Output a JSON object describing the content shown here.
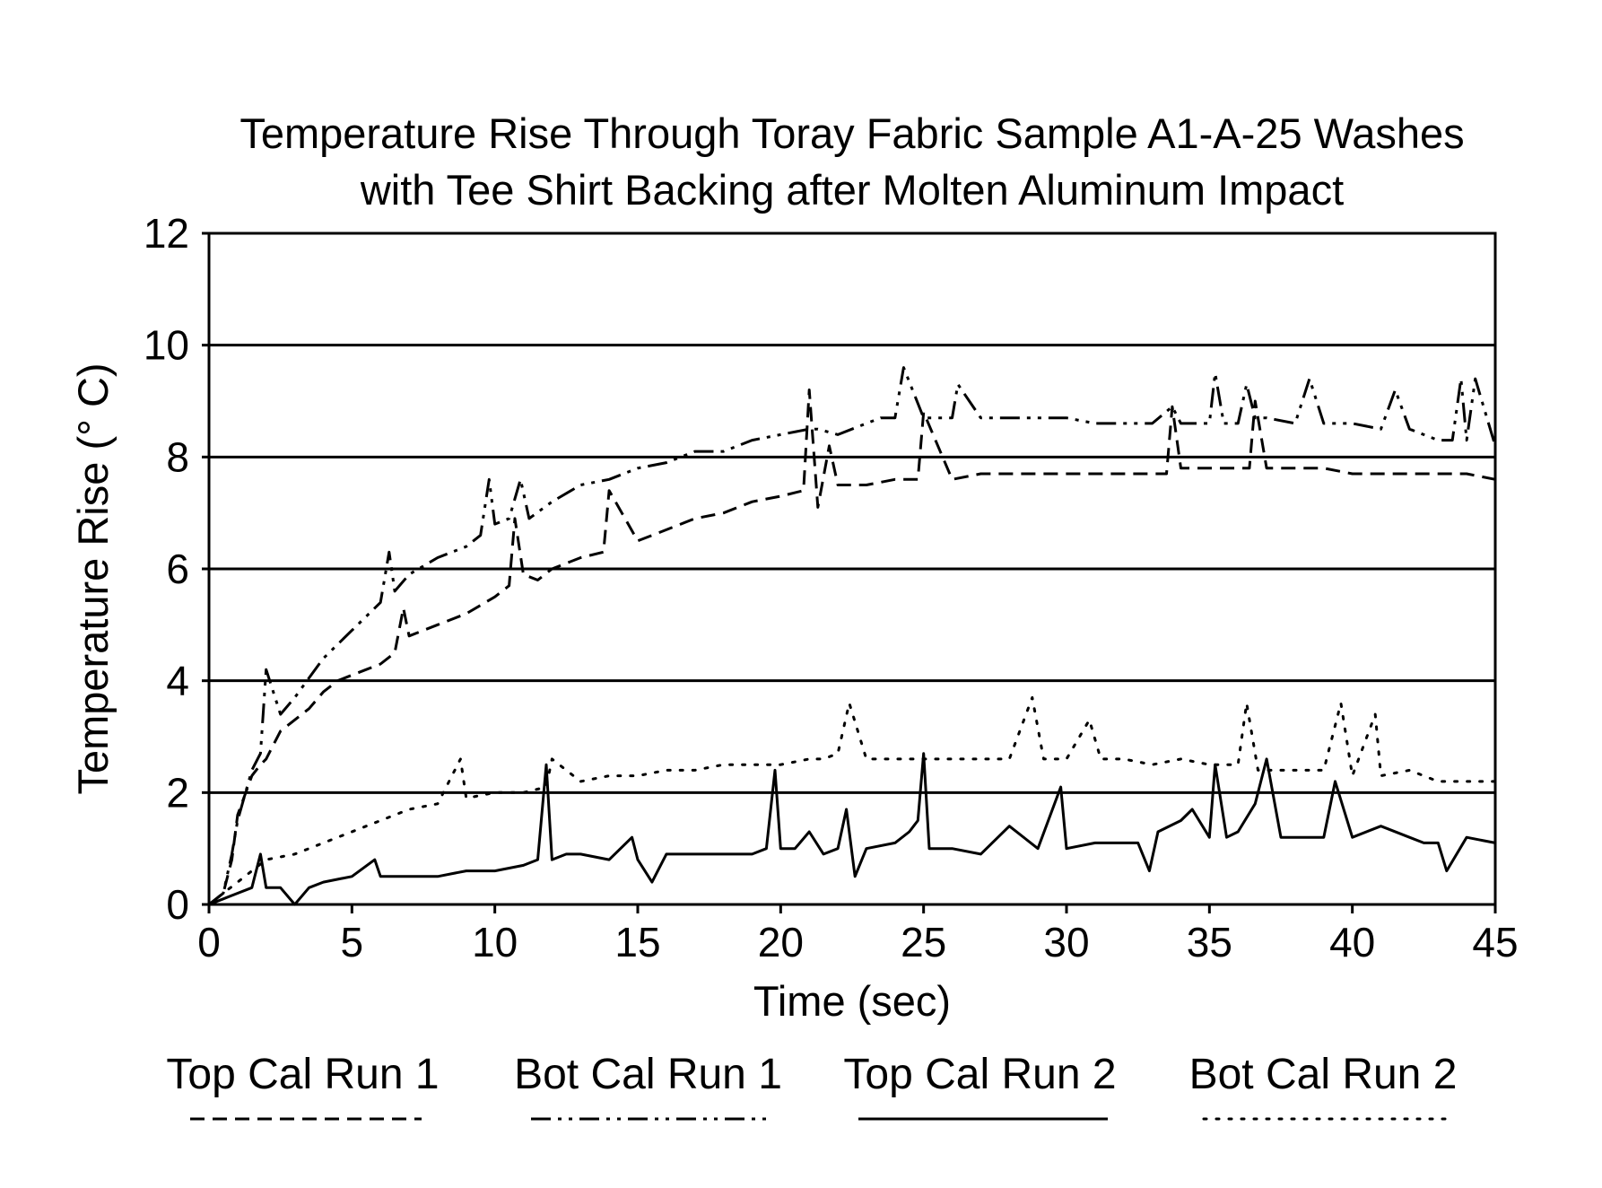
{
  "chart_data": {
    "type": "line",
    "title_lines": [
      "Temperature Rise Through Toray Fabric Sample A1-A-25 Washes",
      "with Tee Shirt Backing after Molten Aluminum Impact"
    ],
    "xlabel": "Time (sec)",
    "ylabel": "Temperature Rise (° C)",
    "xlim": [
      0,
      45
    ],
    "ylim": [
      0,
      12
    ],
    "x_ticks": [
      "0",
      "5",
      "10",
      "15",
      "20",
      "25",
      "30",
      "35",
      "40",
      "45"
    ],
    "y_ticks": [
      "0",
      "2",
      "4",
      "6",
      "8",
      "10",
      "12"
    ],
    "grid": "horizontal",
    "legend_position": "bottom",
    "series": [
      {
        "name": "Top Cal Run 1",
        "line_style": "dashed",
        "color": "#000000",
        "x": [
          0,
          0.5,
          0.8,
          1,
          1.5,
          1.8,
          2,
          2.5,
          3,
          3.5,
          4,
          4.5,
          5,
          5.5,
          6,
          6.5,
          6.8,
          7,
          8,
          9,
          10,
          10.5,
          10.7,
          11,
          11.5,
          12,
          13,
          13.8,
          14,
          15,
          16,
          17,
          18,
          19,
          20,
          20.8,
          21,
          21.3,
          21.7,
          22,
          23,
          24,
          24.8,
          25,
          26,
          27,
          28,
          29,
          30,
          31,
          32,
          33,
          33.5,
          33.7,
          34,
          35,
          36,
          36.4,
          36.6,
          37,
          38,
          39,
          40,
          41,
          42,
          43,
          44,
          45
        ],
        "y": [
          0,
          0.2,
          0.8,
          1.6,
          2.3,
          2.5,
          2.6,
          3.1,
          3.3,
          3.5,
          3.8,
          4.0,
          4.1,
          4.2,
          4.3,
          4.5,
          5.3,
          4.8,
          5.0,
          5.2,
          5.5,
          5.7,
          6.9,
          5.9,
          5.8,
          6.0,
          6.2,
          6.3,
          7.4,
          6.5,
          6.7,
          6.9,
          7.0,
          7.2,
          7.3,
          7.4,
          9.2,
          7.1,
          8.2,
          7.5,
          7.5,
          7.6,
          7.6,
          8.8,
          7.6,
          7.7,
          7.7,
          7.7,
          7.7,
          7.7,
          7.7,
          7.7,
          7.7,
          8.9,
          7.8,
          7.8,
          7.8,
          7.8,
          9.0,
          7.8,
          7.8,
          7.8,
          7.7,
          7.7,
          7.7,
          7.7,
          7.7,
          7.6
        ]
      },
      {
        "name": "Bot Cal Run 1",
        "line_style": "dash-dot",
        "color": "#000000",
        "x": [
          0,
          0.5,
          0.8,
          1,
          1.5,
          1.8,
          2,
          2.5,
          3,
          4,
          5,
          6,
          6.3,
          6.5,
          7,
          8,
          9,
          9.5,
          9.8,
          10,
          10.5,
          10.9,
          11.2,
          12,
          13,
          14,
          15,
          16,
          17,
          18,
          19,
          20,
          21,
          21.3,
          22,
          23,
          23.5,
          24,
          24.3,
          25,
          26,
          26.2,
          27,
          28,
          29,
          30,
          31,
          32,
          33,
          33.7,
          34,
          35,
          35.2,
          35.5,
          36,
          36.3,
          36.6,
          37,
          38,
          38.5,
          39,
          40,
          41,
          41.5,
          42,
          43,
          43.5,
          43.8,
          44,
          44.3,
          45
        ],
        "y": [
          0,
          0.2,
          0.9,
          1.5,
          2.4,
          2.7,
          4.2,
          3.4,
          3.7,
          4.4,
          4.9,
          5.4,
          6.3,
          5.6,
          5.9,
          6.2,
          6.4,
          6.6,
          7.6,
          6.8,
          6.9,
          7.6,
          6.9,
          7.2,
          7.5,
          7.6,
          7.8,
          7.9,
          8.1,
          8.1,
          8.3,
          8.4,
          8.5,
          8.5,
          8.4,
          8.6,
          8.7,
          8.7,
          9.6,
          8.7,
          8.7,
          9.3,
          8.7,
          8.7,
          8.7,
          8.7,
          8.6,
          8.6,
          8.6,
          8.9,
          8.6,
          8.6,
          9.5,
          8.6,
          8.6,
          9.3,
          8.7,
          8.7,
          8.6,
          9.4,
          8.6,
          8.6,
          8.5,
          9.2,
          8.5,
          8.3,
          8.3,
          9.4,
          8.3,
          9.4,
          8.2
        ]
      },
      {
        "name": "Top Cal Run 2",
        "line_style": "solid",
        "color": "#000000",
        "x": [
          0,
          0.5,
          1,
          1.5,
          1.8,
          2,
          2.5,
          3,
          3.5,
          4,
          5,
          5.8,
          6,
          7,
          8,
          9,
          10,
          11,
          11.5,
          11.8,
          12,
          12.5,
          13,
          14,
          14.8,
          15,
          15.5,
          16,
          17,
          18,
          19,
          19.5,
          19.8,
          20,
          20.5,
          21,
          21.5,
          22,
          22.3,
          22.6,
          23,
          24,
          24.5,
          24.8,
          25,
          25.2,
          26,
          27,
          28,
          29,
          29.8,
          30,
          31,
          32,
          32.5,
          32.9,
          33.2,
          34,
          34.4,
          35,
          35.2,
          35.6,
          36,
          36.6,
          37,
          37.5,
          38,
          39,
          39.4,
          40,
          41,
          42,
          42.5,
          43,
          43.3,
          44,
          45
        ],
        "y": [
          0,
          0.1,
          0.2,
          0.3,
          0.9,
          0.3,
          0.3,
          0.0,
          0.3,
          0.4,
          0.5,
          0.8,
          0.5,
          0.5,
          0.5,
          0.6,
          0.6,
          0.7,
          0.8,
          2.5,
          0.8,
          0.9,
          0.9,
          0.8,
          1.2,
          0.8,
          0.4,
          0.9,
          0.9,
          0.9,
          0.9,
          1.0,
          2.4,
          1.0,
          1.0,
          1.3,
          0.9,
          1.0,
          1.7,
          0.5,
          1.0,
          1.1,
          1.3,
          1.5,
          2.7,
          1.0,
          1.0,
          0.9,
          1.4,
          1.0,
          2.1,
          1.0,
          1.1,
          1.1,
          1.1,
          0.6,
          1.3,
          1.5,
          1.7,
          1.2,
          2.5,
          1.2,
          1.3,
          1.8,
          2.6,
          1.2,
          1.2,
          1.2,
          2.2,
          1.2,
          1.4,
          1.2,
          1.1,
          1.1,
          0.6,
          1.2,
          1.1
        ]
      },
      {
        "name": "Bot Cal Run 2",
        "line_style": "dotted",
        "color": "#000000",
        "x": [
          0,
          0.5,
          1,
          1.5,
          2,
          3,
          4,
          5,
          5.5,
          6,
          7,
          8,
          8.8,
          9,
          10,
          11,
          11.8,
          12,
          13,
          14,
          15,
          16,
          17,
          18,
          19,
          20,
          21,
          21.5,
          22,
          22.4,
          23,
          24,
          25,
          26,
          27,
          28,
          28.8,
          29.2,
          30,
          30.8,
          31.2,
          32,
          33,
          34,
          35,
          36,
          36.3,
          36.7,
          37,
          38,
          39,
          39.6,
          40,
          40.8,
          41,
          42,
          43,
          44,
          45
        ],
        "y": [
          0,
          0.2,
          0.4,
          0.6,
          0.8,
          0.9,
          1.1,
          1.3,
          1.4,
          1.5,
          1.7,
          1.8,
          2.6,
          1.9,
          2.0,
          2.0,
          2.1,
          2.6,
          2.2,
          2.3,
          2.3,
          2.4,
          2.4,
          2.5,
          2.5,
          2.5,
          2.6,
          2.6,
          2.7,
          3.6,
          2.6,
          2.6,
          2.6,
          2.6,
          2.6,
          2.6,
          3.7,
          2.6,
          2.6,
          3.3,
          2.6,
          2.6,
          2.5,
          2.6,
          2.5,
          2.5,
          3.6,
          2.4,
          2.4,
          2.4,
          2.4,
          3.6,
          2.3,
          3.4,
          2.3,
          2.4,
          2.2,
          2.2,
          2.2
        ]
      }
    ]
  }
}
